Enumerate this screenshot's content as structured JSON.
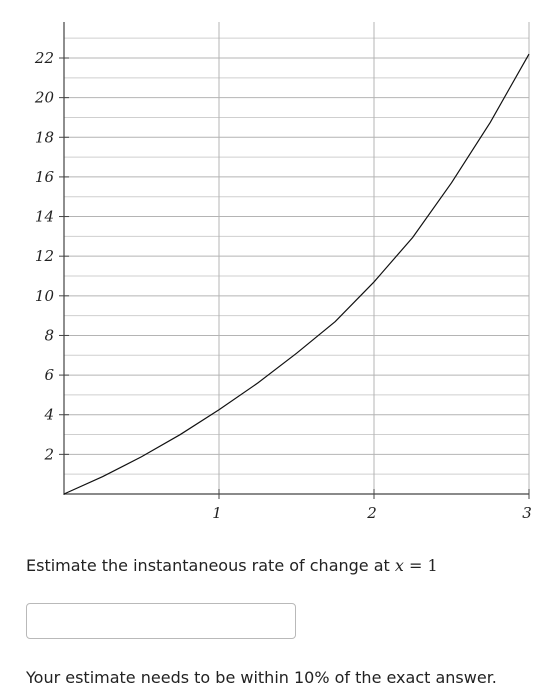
{
  "chart_data": {
    "type": "line",
    "title": "",
    "xlabel": "",
    "ylabel": "",
    "xlim": [
      0,
      3
    ],
    "ylim": [
      0,
      23
    ],
    "x_ticks": [
      1,
      2,
      3
    ],
    "x_tick_labels": [
      "1",
      "2",
      "3"
    ],
    "y_ticks": [
      2,
      4,
      6,
      8,
      10,
      12,
      14,
      16,
      18,
      20,
      22
    ],
    "y_tick_labels": [
      "2",
      "4",
      "6",
      "8",
      "10",
      "12",
      "14",
      "16",
      "18",
      "20",
      "22"
    ],
    "grid": true,
    "x_minor_step": 1,
    "y_minor_step": 1,
    "series": [
      {
        "x": [
          0,
          0.25,
          0.5,
          0.75,
          1,
          1.25,
          1.5,
          1.75,
          2,
          2.25,
          2.5,
          2.75,
          3
        ],
        "y": [
          0,
          0.88,
          1.88,
          3.0,
          4.25,
          5.6,
          7.1,
          8.7,
          10.7,
          12.95,
          15.7,
          18.75,
          22.2
        ]
      }
    ]
  },
  "question": {
    "prefix": "Estimate the instantaneous rate of change at ",
    "variable": "x",
    "equals": " = 1"
  },
  "answer": {
    "value": "",
    "placeholder": ""
  },
  "note": "Your estimate needs to be within 10% of the exact answer."
}
